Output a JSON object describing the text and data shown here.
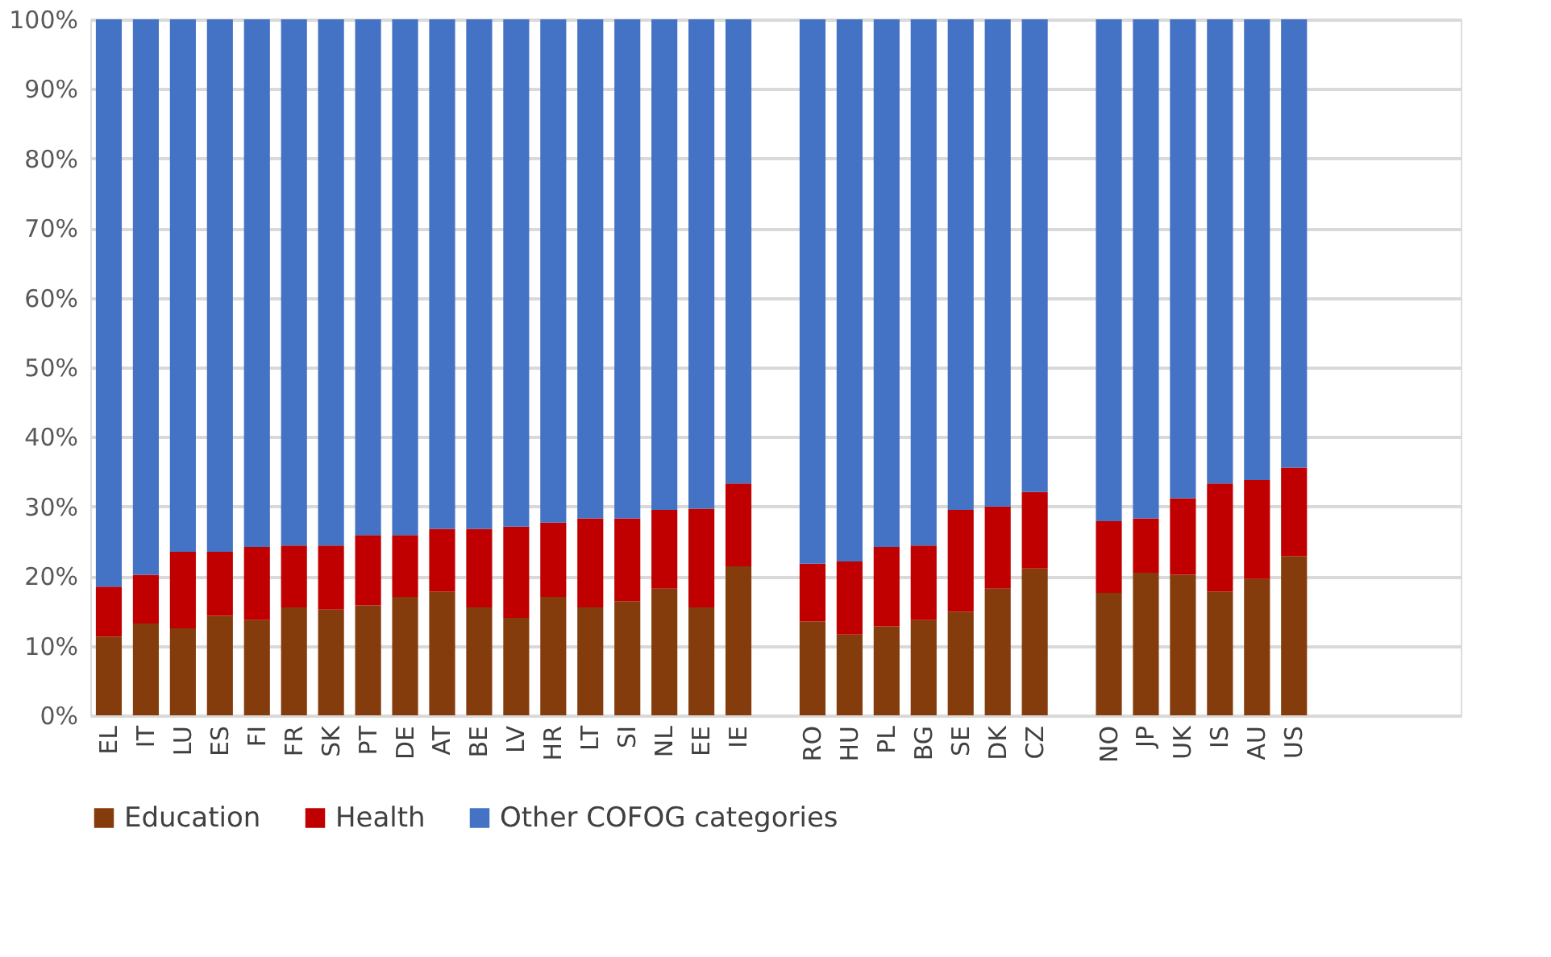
{
  "chart_data": {
    "type": "bar",
    "stacked": true,
    "categories": [
      "EL",
      "IT",
      "LU",
      "ES",
      "FI",
      "FR",
      "SK",
      "PT",
      "DE",
      "AT",
      "BE",
      "LV",
      "HR",
      "LT",
      "SI",
      "NL",
      "EE",
      "IE",
      null,
      "RO",
      "HU",
      "PL",
      "BG",
      "SE",
      "DK",
      "CZ",
      null,
      "NO",
      "JP",
      "UK",
      "IS",
      "AU",
      "US",
      null,
      null,
      null,
      null
    ],
    "series": [
      {
        "name": "Education",
        "color": "#843c0c",
        "values": [
          11.3,
          13.2,
          12.5,
          14.3,
          13.7,
          15.5,
          15.2,
          15.8,
          17.0,
          17.8,
          15.5,
          14.0,
          17.0,
          15.5,
          16.4,
          18.2,
          15.5,
          21.4,
          null,
          13.5,
          11.6,
          12.8,
          13.7,
          14.9,
          18.2,
          21.1,
          null,
          17.6,
          20.5,
          20.2,
          17.8,
          19.6,
          22.9,
          null,
          null,
          null,
          null
        ]
      },
      {
        "name": "Health",
        "color": "#c00000",
        "values": [
          7.2,
          7.0,
          11.0,
          9.2,
          10.5,
          8.9,
          9.2,
          10.1,
          8.9,
          9.0,
          11.3,
          13.1,
          10.7,
          12.8,
          11.9,
          11.3,
          14.2,
          11.9,
          null,
          8.3,
          10.5,
          11.4,
          10.7,
          14.6,
          11.8,
          11.0,
          null,
          10.3,
          7.8,
          11.0,
          15.5,
          14.2,
          12.7,
          null,
          null,
          null,
          null
        ]
      },
      {
        "name": "Other COFOG categories",
        "color": "#4472c4",
        "values": [
          81.5,
          79.8,
          76.5,
          76.5,
          75.8,
          75.6,
          75.6,
          74.1,
          74.1,
          73.2,
          73.2,
          72.9,
          72.3,
          71.7,
          71.7,
          70.5,
          70.3,
          66.7,
          null,
          78.2,
          77.9,
          75.8,
          75.6,
          70.5,
          70.0,
          67.9,
          null,
          72.1,
          71.7,
          68.8,
          66.7,
          66.2,
          64.4,
          null,
          null,
          null,
          null
        ]
      }
    ],
    "ylim": [
      0,
      100
    ],
    "yticks": [
      {
        "value": 0,
        "label": "0%"
      },
      {
        "value": 10,
        "label": "10%"
      },
      {
        "value": 20,
        "label": "20%"
      },
      {
        "value": 30,
        "label": "30%"
      },
      {
        "value": 40,
        "label": "40%"
      },
      {
        "value": 50,
        "label": "50%"
      },
      {
        "value": 60,
        "label": "60%"
      },
      {
        "value": 70,
        "label": "70%"
      },
      {
        "value": 80,
        "label": "80%"
      },
      {
        "value": 90,
        "label": "90%"
      },
      {
        "value": 100,
        "label": "100%"
      }
    ],
    "grid": "y",
    "legend": "bottom"
  }
}
